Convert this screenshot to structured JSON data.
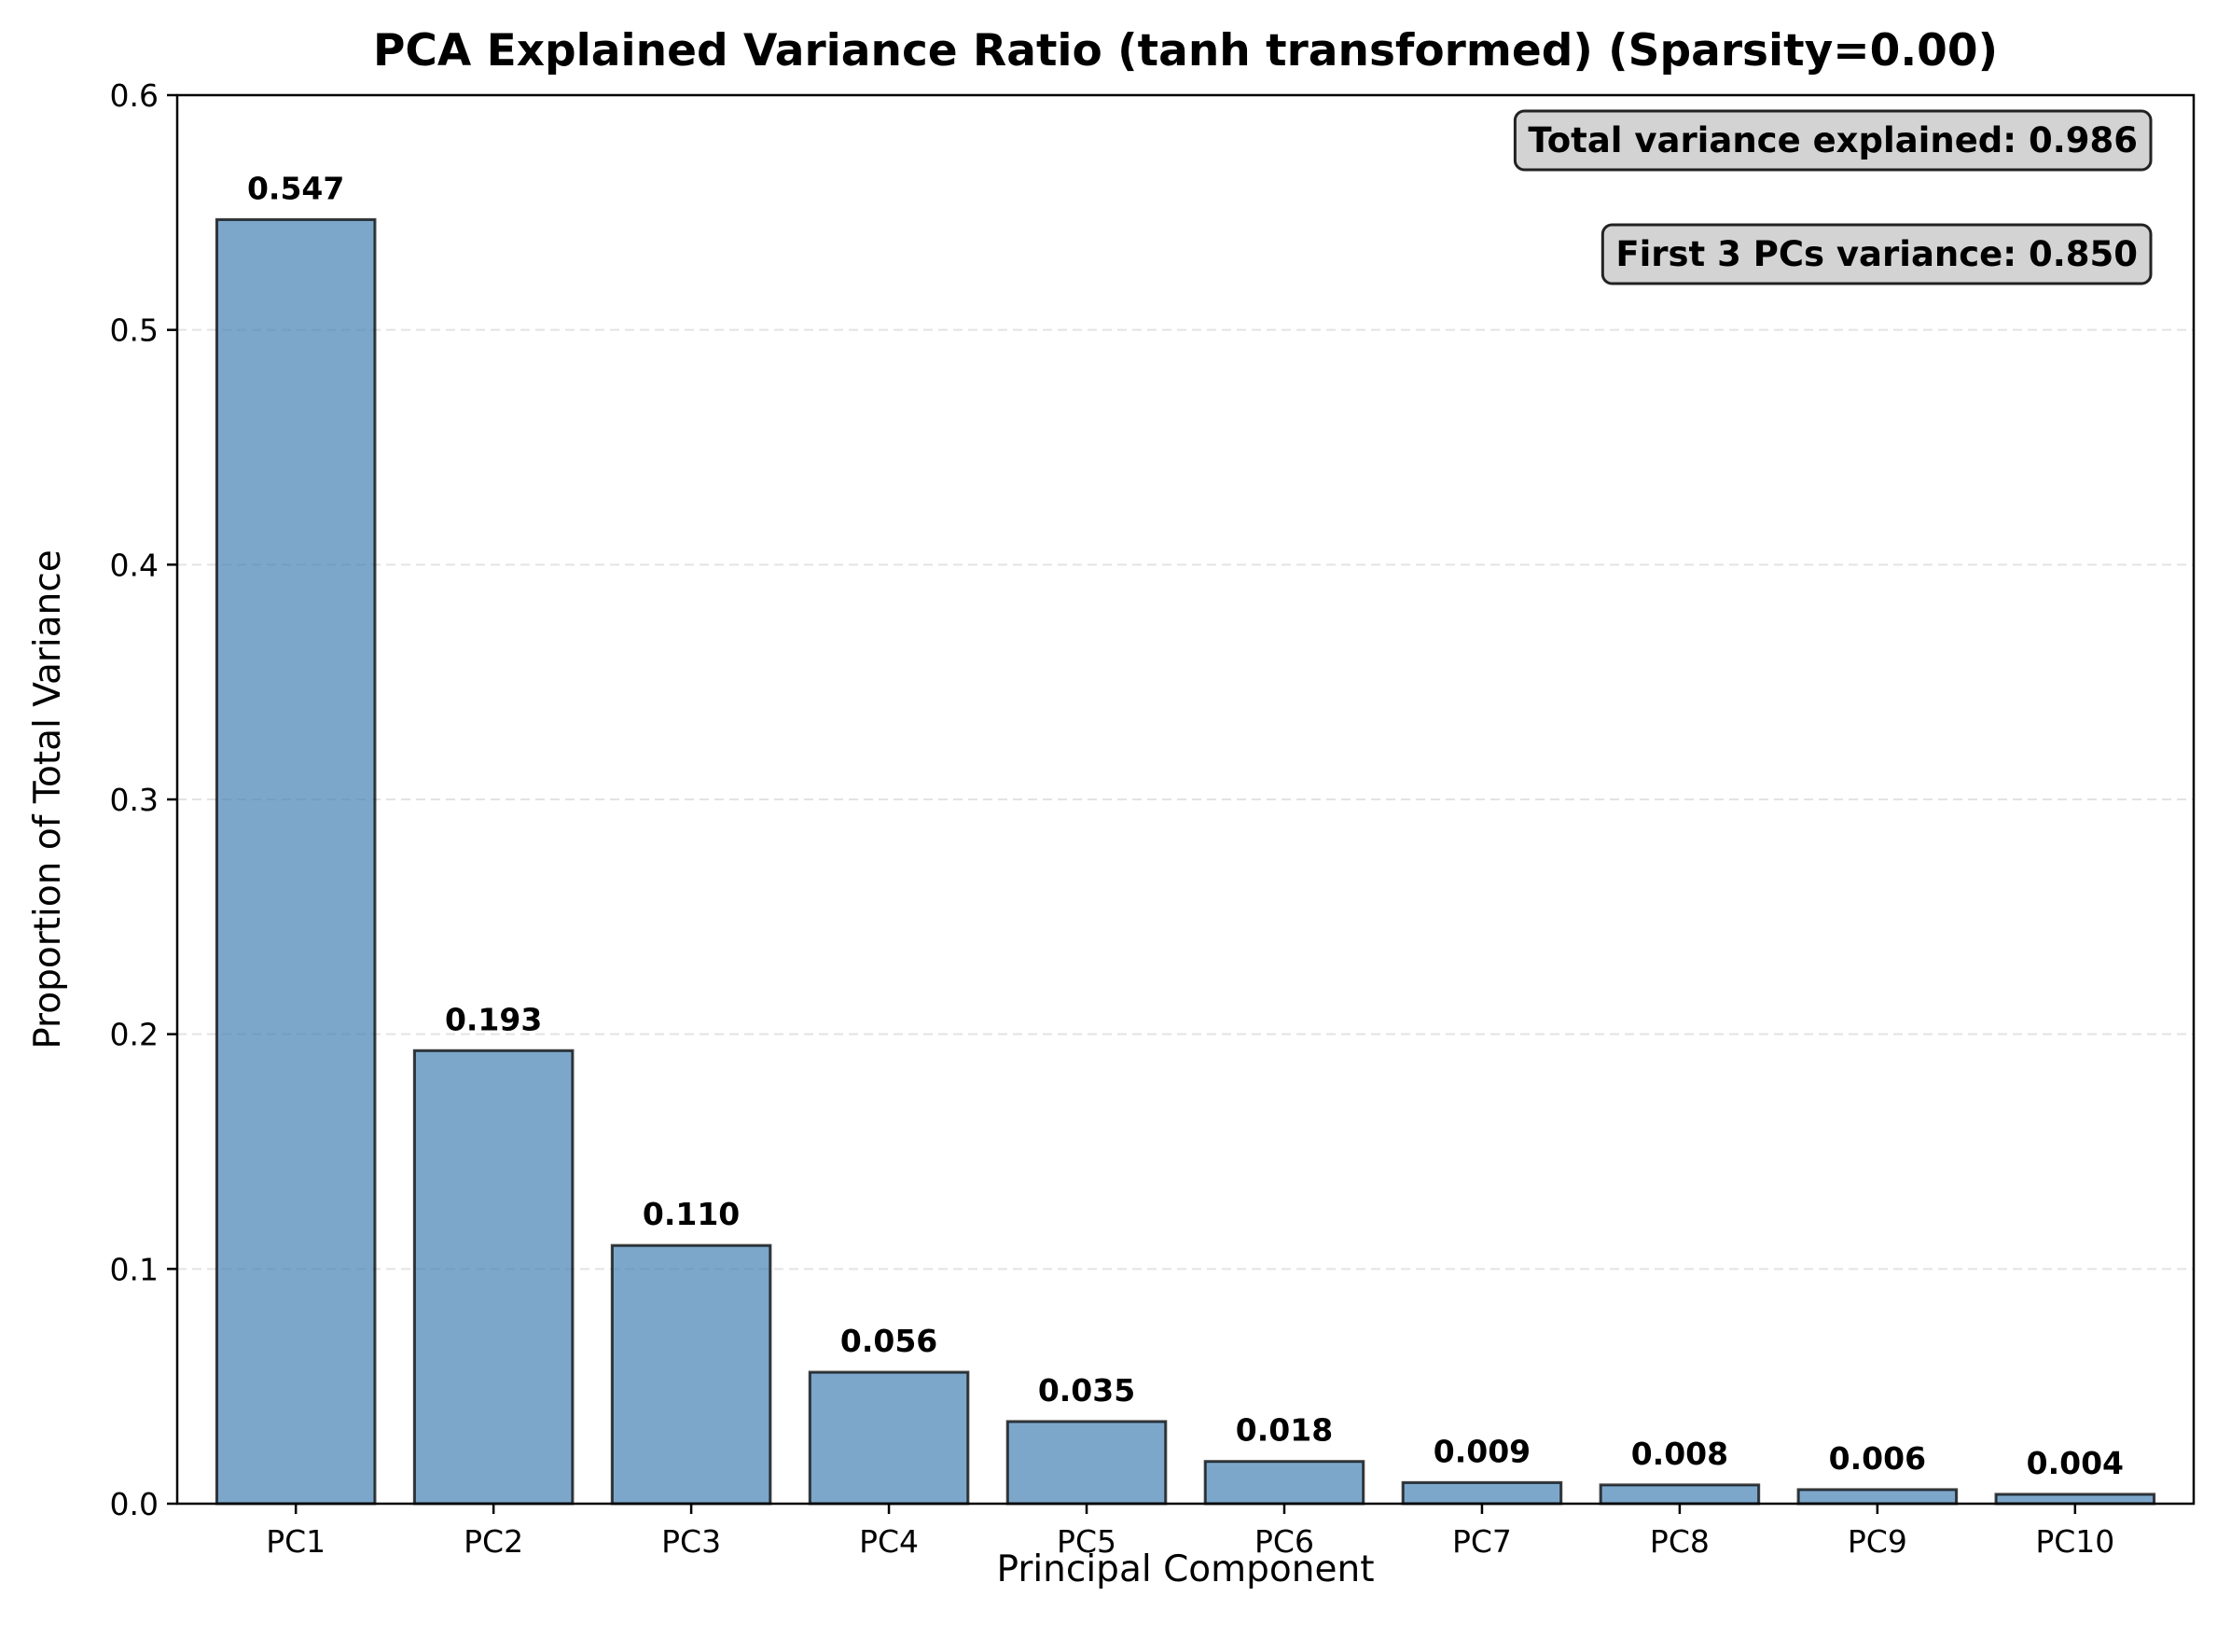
{
  "chart_data": {
    "type": "bar",
    "title": "PCA Explained Variance Ratio (tanh transformed) (Sparsity=0.00)",
    "xlabel": "Principal Component",
    "ylabel": "Proportion of Total Variance",
    "categories": [
      "PC1",
      "PC2",
      "PC3",
      "PC4",
      "PC5",
      "PC6",
      "PC7",
      "PC8",
      "PC9",
      "PC10"
    ],
    "values": [
      0.547,
      0.193,
      0.11,
      0.056,
      0.035,
      0.018,
      0.009,
      0.008,
      0.006,
      0.004
    ],
    "value_labels": [
      "0.547",
      "0.193",
      "0.110",
      "0.056",
      "0.035",
      "0.018",
      "0.009",
      "0.008",
      "0.006",
      "0.004"
    ],
    "ylim": [
      0,
      0.6
    ],
    "yticks": [
      0.0,
      0.1,
      0.2,
      0.3,
      0.4,
      0.5,
      0.6
    ],
    "ytick_labels": [
      "0.0",
      "0.1",
      "0.2",
      "0.3",
      "0.4",
      "0.5",
      "0.6"
    ],
    "grid": "y-dashed",
    "bar_color": "#4682b4",
    "annotations": [
      "Total variance explained: 0.986",
      "First 3 PCs variance: 0.850"
    ],
    "annotation_placement": "top-right"
  }
}
